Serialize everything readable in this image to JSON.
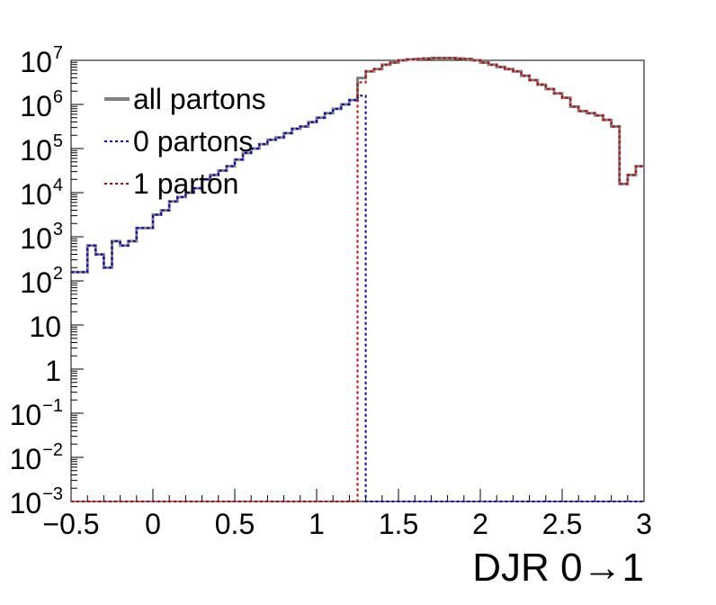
{
  "chart_data": {
    "type": "line",
    "title": "",
    "xlabel": "DJR 0→1",
    "ylabel": "",
    "xlim": [
      -0.5,
      3.0
    ],
    "ylim_log10": [
      -3,
      7
    ],
    "log_y": true,
    "grid": false,
    "legend_position": "top-left",
    "x_ticks": [
      "−0.5",
      "0",
      "0.5",
      "1",
      "1.5",
      "2",
      "2.5",
      "3"
    ],
    "y_ticks": [
      {
        "base": "10",
        "exp": "7"
      },
      {
        "base": "10",
        "exp": "6"
      },
      {
        "base": "10",
        "exp": "5"
      },
      {
        "base": "10",
        "exp": "4"
      },
      {
        "base": "10",
        "exp": "3"
      },
      {
        "base": "10",
        "exp": "2"
      },
      {
        "base": "10",
        "exp": ""
      },
      {
        "base": "1",
        "exp": ""
      },
      {
        "base": "10",
        "exp": "−1"
      },
      {
        "base": "10",
        "exp": "−2"
      },
      {
        "base": "10",
        "exp": "−3"
      }
    ],
    "bin_edges": [
      -0.5,
      -0.45,
      -0.4,
      -0.35,
      -0.3,
      -0.25,
      -0.2,
      -0.15,
      -0.1,
      -0.05,
      0.0,
      0.05,
      0.1,
      0.15,
      0.2,
      0.25,
      0.3,
      0.35,
      0.4,
      0.45,
      0.5,
      0.55,
      0.6,
      0.65,
      0.7,
      0.75,
      0.8,
      0.85,
      0.9,
      0.95,
      1.0,
      1.05,
      1.1,
      1.15,
      1.2,
      1.25,
      1.3,
      1.35,
      1.4,
      1.45,
      1.5,
      1.55,
      1.6,
      1.65,
      1.7,
      1.75,
      1.8,
      1.85,
      1.9,
      1.95,
      2.0,
      2.05,
      2.1,
      2.15,
      2.2,
      2.25,
      2.3,
      2.35,
      2.4,
      2.45,
      2.5,
      2.55,
      2.6,
      2.65,
      2.7,
      2.75,
      2.8,
      2.85,
      2.9,
      2.95,
      3.0
    ],
    "series": [
      {
        "name": "all partons",
        "color": "#808080",
        "style": "solid",
        "log10_values": [
          2.2,
          2.2,
          2.8,
          2.6,
          2.3,
          2.9,
          2.8,
          2.9,
          3.2,
          3.2,
          3.5,
          3.6,
          3.8,
          3.9,
          4.0,
          4.1,
          4.3,
          4.4,
          4.5,
          4.6,
          4.75,
          4.9,
          5.0,
          5.1,
          5.2,
          5.25,
          5.35,
          5.45,
          5.5,
          5.6,
          5.7,
          5.8,
          5.9,
          6.0,
          6.1,
          6.6,
          6.75,
          6.8,
          6.9,
          6.95,
          7.0,
          7.02,
          7.03,
          7.04,
          7.05,
          7.05,
          7.05,
          7.04,
          7.03,
          7.0,
          6.95,
          6.9,
          6.85,
          6.8,
          6.75,
          6.65,
          6.55,
          6.45,
          6.35,
          6.25,
          6.15,
          5.95,
          5.85,
          5.8,
          5.75,
          5.65,
          5.5,
          4.2,
          4.4,
          4.6
        ]
      },
      {
        "name": "0 partons",
        "color": "#0000cc",
        "style": "dotted",
        "log10_values": [
          2.2,
          2.2,
          2.8,
          2.6,
          2.3,
          2.9,
          2.8,
          2.9,
          3.2,
          3.2,
          3.5,
          3.6,
          3.8,
          3.9,
          4.0,
          4.1,
          4.3,
          4.4,
          4.5,
          4.6,
          4.75,
          4.9,
          5.0,
          5.1,
          5.2,
          5.25,
          5.35,
          5.45,
          5.5,
          5.6,
          5.7,
          5.8,
          5.9,
          6.0,
          6.1,
          6.2,
          -3,
          -3,
          -3,
          -3,
          -3,
          -3,
          -3,
          -3,
          -3,
          -3,
          -3,
          -3,
          -3,
          -3,
          -3,
          -3,
          -3,
          -3,
          -3,
          -3,
          -3,
          -3,
          -3,
          -3,
          -3,
          -3,
          -3,
          -3,
          -3,
          -3,
          -3,
          -3,
          -3,
          -3
        ]
      },
      {
        "name": "1 parton",
        "color": "#cc0000",
        "style": "dotted",
        "log10_values": [
          -3,
          -3,
          -3,
          -3,
          -3,
          -3,
          -3,
          -3,
          -3,
          -3,
          -3,
          -3,
          -3,
          -3,
          -3,
          -3,
          -3,
          -3,
          -3,
          -3,
          -3,
          -3,
          -3,
          -3,
          -3,
          -3,
          -3,
          -3,
          -3,
          -3,
          -3,
          -3,
          -3,
          -3,
          -3,
          6.5,
          6.75,
          6.8,
          6.9,
          6.95,
          7.0,
          7.02,
          7.03,
          7.04,
          7.05,
          7.05,
          7.05,
          7.04,
          7.03,
          7.0,
          6.95,
          6.9,
          6.85,
          6.8,
          6.75,
          6.65,
          6.55,
          6.45,
          6.35,
          6.25,
          6.15,
          5.95,
          5.85,
          5.8,
          5.75,
          5.65,
          5.5,
          4.2,
          4.4,
          4.6
        ]
      }
    ]
  }
}
